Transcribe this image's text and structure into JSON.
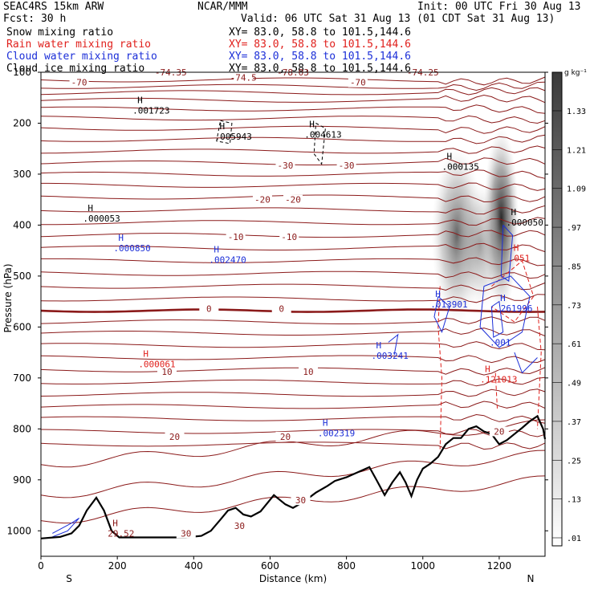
{
  "header": {
    "left_line1": "SEAC4RS 15km ARW",
    "left_line2": "Fcst:   30 h",
    "center_line1": "NCAR/MMM",
    "init": "Init: 00 UTC Fri 30 Aug 13",
    "valid": "Valid: 06 UTC Sat 31 Aug 13 (01 CDT Sat 31 Aug 13)"
  },
  "fields": [
    {
      "name": "Snow mixing ratio",
      "xy": "XY=  83.0, 58.8 to 101.5,144.6",
      "color": "#000000"
    },
    {
      "name": "Rain water mixing ratio",
      "xy": "XY=  83.0, 58.8 to 101.5,144.6",
      "color": "#e0201c"
    },
    {
      "name": "Cloud water mixing ratio",
      "xy": "XY=  83.0, 58.8 to 101.5,144.6",
      "color": "#1c2fd8"
    },
    {
      "name": "Cloud ice mixing ratio",
      "xy": "XY=  83.0, 58.8 to 101.5,144.6",
      "color": "#000000"
    }
  ],
  "chart_data": {
    "type": "contour",
    "xlabel": "Distance (km)",
    "ylabel": "Pressure (hPa)",
    "xlim": [
      0,
      1320
    ],
    "ylim": [
      1050,
      100
    ],
    "x_ticks": [
      "0",
      "200",
      "400",
      "600",
      "800",
      "1000",
      "1200"
    ],
    "x_tick_values": [
      0,
      200,
      400,
      600,
      800,
      1000,
      1200
    ],
    "y_ticks": [
      "100",
      "200",
      "300",
      "400",
      "500",
      "600",
      "700",
      "800",
      "900",
      "1000"
    ],
    "y_tick_values": [
      100,
      200,
      300,
      400,
      500,
      600,
      700,
      800,
      900,
      1000
    ],
    "x_end_labels": {
      "left": "S",
      "right": "N"
    },
    "colorbar": {
      "unit": "g kg⁻¹",
      "labels": [
        "1.33",
        "1.21",
        "1.09",
        ".97",
        ".85",
        ".73",
        ".61",
        ".49",
        ".37",
        ".25",
        ".13",
        ".01"
      ],
      "values": [
        1.33,
        1.21,
        1.09,
        0.97,
        0.85,
        0.73,
        0.61,
        0.49,
        0.37,
        0.25,
        0.13,
        0.01
      ]
    },
    "temperature_contour_labels": [
      {
        "text": "-70",
        "x": 100,
        "p": 120
      },
      {
        "text": "-74.5",
        "x": 530,
        "p": 110
      },
      {
        "text": "-70",
        "x": 830,
        "p": 120
      },
      {
        "text": "-30",
        "x": 640,
        "p": 283
      },
      {
        "text": "-30",
        "x": 800,
        "p": 283
      },
      {
        "text": "-20",
        "x": 580,
        "p": 350
      },
      {
        "text": "-20",
        "x": 660,
        "p": 350
      },
      {
        "text": "-10",
        "x": 510,
        "p": 423
      },
      {
        "text": "-10",
        "x": 650,
        "p": 423
      },
      {
        "text": "0",
        "x": 440,
        "p": 564
      },
      {
        "text": "0",
        "x": 630,
        "p": 564
      },
      {
        "text": "10",
        "x": 330,
        "p": 688
      },
      {
        "text": "10",
        "x": 700,
        "p": 688
      },
      {
        "text": "20",
        "x": 350,
        "p": 815
      },
      {
        "text": "20",
        "x": 640,
        "p": 815
      },
      {
        "text": "20",
        "x": 1200,
        "p": 805
      },
      {
        "text": "30",
        "x": 680,
        "p": 940
      },
      {
        "text": "30",
        "x": 520,
        "p": 990
      },
      {
        "text": "30",
        "x": 380,
        "p": 1005
      }
    ],
    "extrema_labels": [
      {
        "mark": "H",
        "value": ".001723",
        "x": 240,
        "p": 175,
        "color": "#000000"
      },
      {
        "mark": "H",
        "value": ".005943",
        "x": 455,
        "p": 226,
        "color": "#000000"
      },
      {
        "mark": "H",
        "value": ".004613",
        "x": 690,
        "p": 222,
        "color": "#000000"
      },
      {
        "mark": "H",
        "value": ".000135",
        "x": 1050,
        "p": 285,
        "color": "#000000"
      },
      {
        "mark": "H",
        "value": ".000053",
        "x": 110,
        "p": 387,
        "color": "#000000"
      },
      {
        "mark": "H",
        "value": ".000050",
        "x": 1218,
        "p": 395,
        "color": "#000000"
      },
      {
        "mark": "H",
        "value": ".000850",
        "x": 190,
        "p": 445,
        "color": "#1c2fd8"
      },
      {
        "mark": "H",
        "value": ".002470",
        "x": 440,
        "p": 468,
        "color": "#1c2fd8"
      },
      {
        "mark": "H",
        "value": ".051",
        "x": 1225,
        "p": 465,
        "color": "#e0201c"
      },
      {
        "mark": "H",
        "value": ".013901",
        "x": 1020,
        "p": 555,
        "color": "#1c2fd8"
      },
      {
        "mark": "H",
        "value": ".261996",
        "x": 1190,
        "p": 563,
        "color": "#1c2fd8"
      },
      {
        "mark": "",
        "value": ".001",
        "x": 1175,
        "p": 630,
        "color": "#1c2fd8"
      },
      {
        "mark": "H",
        "value": ".003241",
        "x": 865,
        "p": 656,
        "color": "#1c2fd8"
      },
      {
        "mark": "H",
        "value": ".000061",
        "x": 255,
        "p": 673,
        "color": "#e0201c"
      },
      {
        "mark": "H",
        "value": ".121013",
        "x": 1150,
        "p": 703,
        "color": "#e0201c"
      },
      {
        "mark": "H",
        "value": ".002319",
        "x": 725,
        "p": 808,
        "color": "#1c2fd8"
      },
      {
        "mark": "H",
        "value": "29.52",
        "x": 175,
        "p": 1005,
        "color": "#8b1a1a"
      }
    ],
    "top_labels": [
      {
        "text": "-74.35",
        "x": 340,
        "p": 100
      },
      {
        "text": "-78.03",
        "x": 660,
        "p": 100
      },
      {
        "text": "-74.25",
        "x": 1000,
        "p": 100
      }
    ],
    "terrain_profile": [
      [
        0,
        1015
      ],
      [
        50,
        1012
      ],
      [
        80,
        1005
      ],
      [
        100,
        990
      ],
      [
        120,
        960
      ],
      [
        145,
        935
      ],
      [
        165,
        960
      ],
      [
        185,
        1000
      ],
      [
        205,
        1013
      ],
      [
        260,
        1013
      ],
      [
        320,
        1013
      ],
      [
        380,
        1013
      ],
      [
        420,
        1010
      ],
      [
        445,
        1000
      ],
      [
        470,
        978
      ],
      [
        490,
        960
      ],
      [
        510,
        955
      ],
      [
        530,
        968
      ],
      [
        550,
        972
      ],
      [
        575,
        962
      ],
      [
        610,
        930
      ],
      [
        640,
        948
      ],
      [
        660,
        955
      ],
      [
        690,
        942
      ],
      [
        720,
        925
      ],
      [
        750,
        912
      ],
      [
        770,
        902
      ],
      [
        800,
        895
      ],
      [
        830,
        885
      ],
      [
        860,
        875
      ],
      [
        880,
        902
      ],
      [
        900,
        930
      ],
      [
        920,
        905
      ],
      [
        940,
        885
      ],
      [
        955,
        905
      ],
      [
        970,
        932
      ],
      [
        985,
        900
      ],
      [
        1000,
        878
      ],
      [
        1020,
        868
      ],
      [
        1040,
        855
      ],
      [
        1060,
        830
      ],
      [
        1080,
        818
      ],
      [
        1100,
        818
      ],
      [
        1120,
        800
      ],
      [
        1140,
        795
      ],
      [
        1160,
        805
      ],
      [
        1180,
        810
      ],
      [
        1200,
        830
      ],
      [
        1220,
        822
      ],
      [
        1240,
        810
      ],
      [
        1260,
        798
      ],
      [
        1280,
        785
      ],
      [
        1300,
        775
      ],
      [
        1315,
        800
      ],
      [
        1320,
        820
      ]
    ]
  }
}
